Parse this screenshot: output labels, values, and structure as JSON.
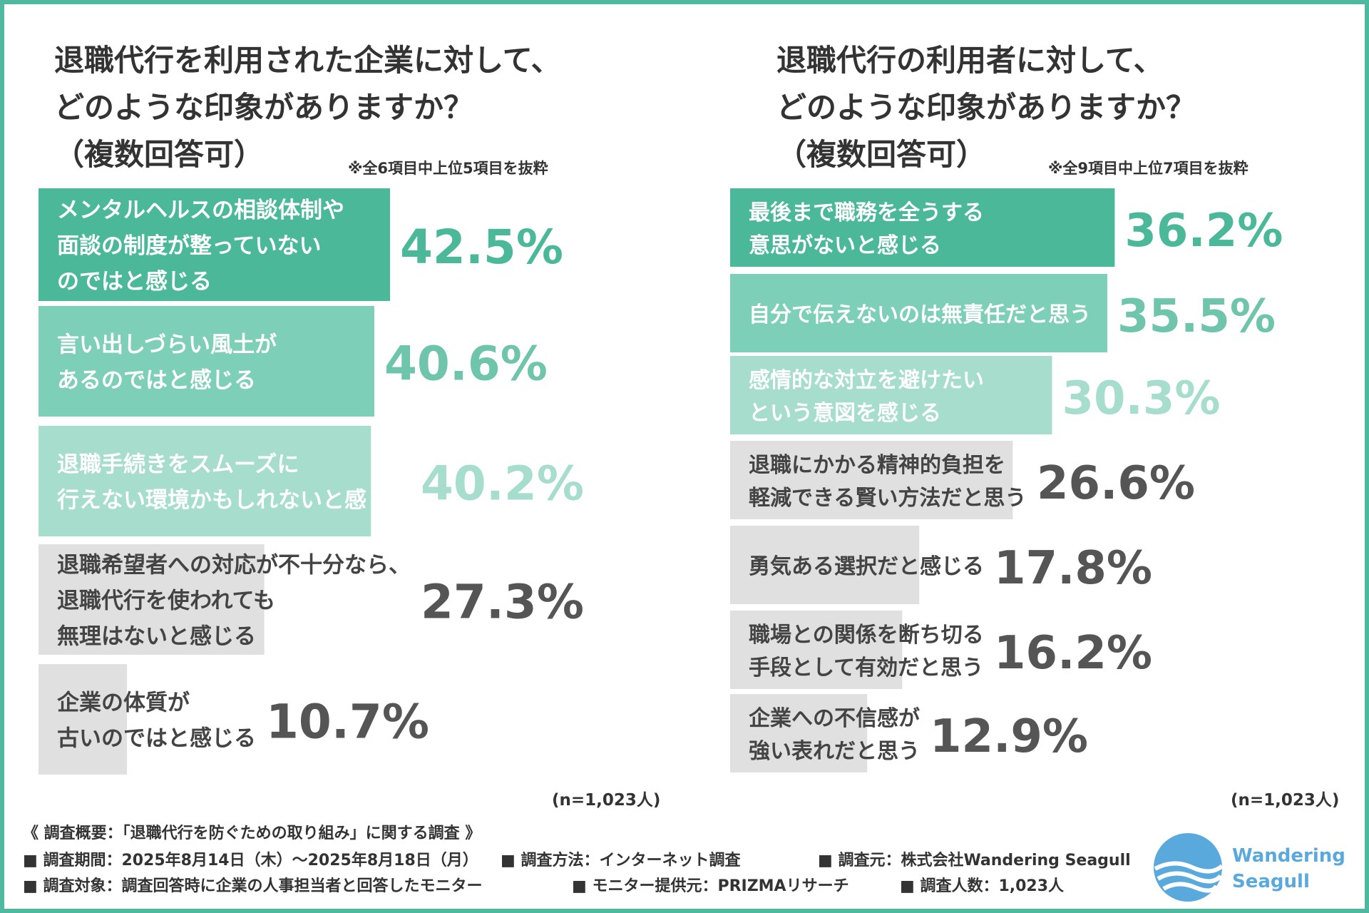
{
  "left": {
    "title_lines": [
      "退職代行を利用された企業に対して、",
      "どのような印象がありますか？",
      "（複数回答可）"
    ],
    "note": "※全6項目中上位5項目を抜粋",
    "n_label": "(n=1,023人)"
  },
  "right": {
    "title_lines": [
      "退職代行の利用者に対して、",
      "どのような印象がありますか？",
      "（複数回答可）"
    ],
    "note": "※全9項目中上位7項目を抜粋",
    "n_label": "(n=1,023人)"
  },
  "chart_data": [
    {
      "type": "bar",
      "orientation": "horizontal",
      "title": "退職代行を利用された企業に対して、どのような印象がありますか？（複数回答可）",
      "unit": "%",
      "categories": [
        [
          "メンタルヘルスの相談体制や",
          "面談の制度が整っていない",
          "のではと感じる"
        ],
        [
          "言い出しづらい風土が",
          "あるのではと感じる"
        ],
        [
          "退職手続きをスムーズに",
          "行えない環境かもしれないと感じる"
        ],
        [
          "退職希望者への対応が不十分なら、",
          "退職代行を使われても",
          "無理はないと感じる"
        ],
        [
          "企業の体質が",
          "古いのではと感じる"
        ]
      ],
      "values": [
        42.5,
        40.6,
        40.2,
        27.3,
        10.7
      ],
      "value_labels": [
        "42.5%",
        "40.6%",
        "40.2%",
        "27.3%",
        "10.7%"
      ],
      "colors": [
        "#4bb89a",
        "#7dcfb7",
        "#a6ddcd",
        "#e0e0e0",
        "#e0e0e0"
      ],
      "label_colors": [
        "#ffffff",
        "#ffffff",
        "#ffffff",
        "#444444",
        "#444444"
      ],
      "value_colors": [
        "#4bb89a",
        "#6fc5ab",
        "#a6ddcd",
        "#555555",
        "#555555"
      ]
    },
    {
      "type": "bar",
      "orientation": "horizontal",
      "title": "退職代行の利用者に対して、どのような印象がありますか？（複数回答可）",
      "unit": "%",
      "categories": [
        [
          "最後まで職務を全うする",
          "意思がないと感じる"
        ],
        [
          "自分で伝えないのは無責任だと思う"
        ],
        [
          "感情的な対立を避けたい",
          "という意図を感じる"
        ],
        [
          "退職にかかる精神的負担を",
          "軽減できる賢い方法だと思う"
        ],
        [
          "勇気ある選択だと感じる"
        ],
        [
          "職場との関係を断ち切る",
          "手段として有効だと思う"
        ],
        [
          "企業への不信感が",
          "強い表れだと思う"
        ]
      ],
      "values": [
        36.2,
        35.5,
        30.3,
        26.6,
        17.8,
        16.2,
        12.9
      ],
      "value_labels": [
        "36.2%",
        "35.5%",
        "30.3%",
        "26.6%",
        "17.8%",
        "16.2%",
        "12.9%"
      ],
      "colors": [
        "#4bb89a",
        "#7dcfb7",
        "#a6ddcd",
        "#e0e0e0",
        "#e0e0e0",
        "#e0e0e0",
        "#e0e0e0"
      ],
      "label_colors": [
        "#ffffff",
        "#ffffff",
        "#ffffff",
        "#444444",
        "#444444",
        "#444444",
        "#444444"
      ],
      "value_colors": [
        "#4bb89a",
        "#6fc5ab",
        "#a6ddcd",
        "#555555",
        "#555555",
        "#555555",
        "#555555"
      ]
    }
  ],
  "survey": {
    "heading": "《 調査概要：「退職代行を防ぐための取り組み」に関する調査 》",
    "period": "■ 調査期間：2025年8月14日（木）～2025年8月18日（月）",
    "method": "■ 調査方法：インターネット調査",
    "source": "■ 調査元：株式会社Wandering Seagull",
    "target": "■ 調査対象：調査回答時に企業の人事担当者と回答したモニター",
    "provider": "■ モニター提供元：PRIZMAリサーチ",
    "count": "■ 調査人数：1,023人"
  },
  "logo": {
    "line1": "Wandering",
    "line2": "Seagull",
    "color": "#5aa9dc"
  }
}
